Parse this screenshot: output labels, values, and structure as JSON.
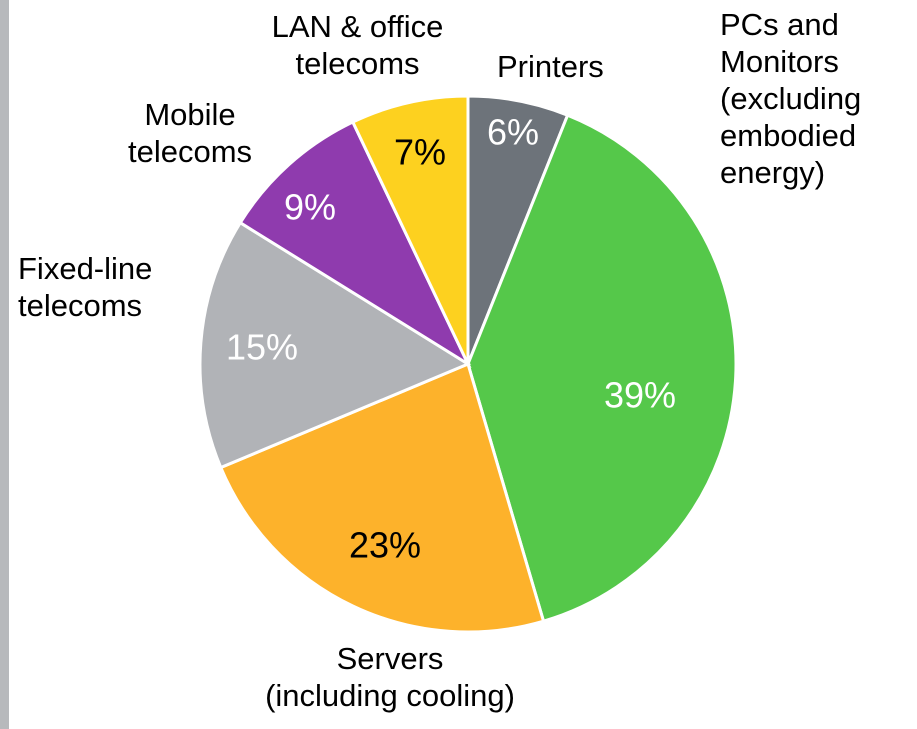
{
  "chart_data": {
    "type": "pie",
    "categories": [
      "Printers",
      "PCs and\nMonitors\n(excluding\nembodied\nenergy)",
      "Servers\n(including cooling)",
      "Fixed-line\ntelecoms",
      "Mobile\ntelecoms",
      "LAN & office\ntelecoms"
    ],
    "values": [
      6,
      39,
      23,
      15,
      9,
      7
    ],
    "value_labels": [
      "6%",
      "39%",
      "23%",
      "15%",
      "9%",
      "7%"
    ],
    "colors": [
      "#6d737a",
      "#55c84a",
      "#fdb22b",
      "#b1b3b7",
      "#8f3bae",
      "#fdd11f"
    ]
  }
}
